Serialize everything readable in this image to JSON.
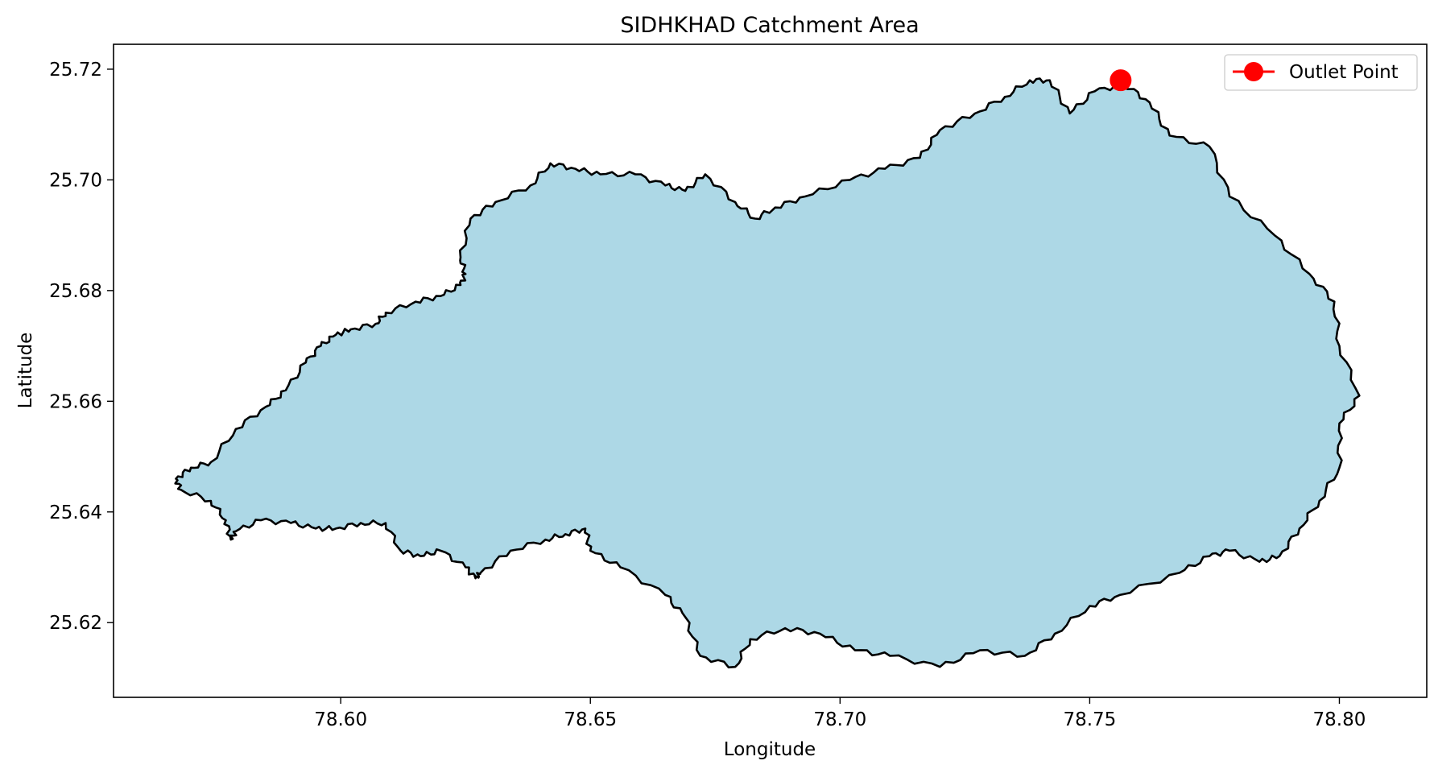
{
  "chart_data": {
    "type": "map",
    "title": "SIDHKHAD Catchment Area",
    "xlabel": "Longitude",
    "ylabel": "Latitude",
    "xlim": [
      78.5545,
      78.8175
    ],
    "ylim": [
      25.6065,
      25.7245
    ],
    "xticks": [
      78.6,
      78.65,
      78.7,
      78.75,
      78.8
    ],
    "xtick_labels": [
      "78.60",
      "78.65",
      "78.70",
      "78.75",
      "78.80"
    ],
    "yticks": [
      25.62,
      25.64,
      25.66,
      25.68,
      25.7,
      25.72
    ],
    "ytick_labels": [
      "25.62",
      "25.64",
      "25.66",
      "25.68",
      "25.70",
      "25.72"
    ],
    "grid": false,
    "legend_position": "upper right",
    "legend": [
      {
        "label": "Outlet Point",
        "color": "#ff0000",
        "marker": "circle"
      }
    ],
    "outlet_point": {
      "lon": 78.7562,
      "lat": 25.718
    },
    "catchment": {
      "fill_color": "#add8e6",
      "edge_color": "#000000",
      "boundary": [
        [
          78.757,
          25.7173
        ],
        [
          78.762,
          25.714
        ],
        [
          78.766,
          25.708
        ],
        [
          78.774,
          25.706
        ],
        [
          78.778,
          25.697
        ],
        [
          78.787,
          25.69
        ],
        [
          78.794,
          25.683
        ],
        [
          78.799,
          25.678
        ],
        [
          78.8,
          25.67
        ],
        [
          78.804,
          25.661
        ],
        [
          78.8,
          25.656
        ],
        [
          78.8,
          25.648
        ],
        [
          78.796,
          25.642
        ],
        [
          78.792,
          25.637
        ],
        [
          78.788,
          25.632
        ],
        [
          78.784,
          25.631
        ],
        [
          78.778,
          25.633
        ],
        [
          78.774,
          25.632
        ],
        [
          78.768,
          25.629
        ],
        [
          78.756,
          25.625
        ],
        [
          78.75,
          25.623
        ],
        [
          78.743,
          25.618
        ],
        [
          78.737,
          25.614
        ],
        [
          78.728,
          25.615
        ],
        [
          78.72,
          25.612
        ],
        [
          78.71,
          25.614
        ],
        [
          78.703,
          25.615
        ],
        [
          78.696,
          25.618
        ],
        [
          78.689,
          25.619
        ],
        [
          78.682,
          25.617
        ],
        [
          78.679,
          25.612
        ],
        [
          78.672,
          25.614
        ],
        [
          78.669,
          25.621
        ],
        [
          78.665,
          25.625
        ],
        [
          78.656,
          25.63
        ],
        [
          78.65,
          25.633
        ],
        [
          78.649,
          25.637
        ],
        [
          78.645,
          25.636
        ],
        [
          78.641,
          25.635
        ],
        [
          78.634,
          25.633
        ],
        [
          78.628,
          25.629
        ],
        [
          78.627,
          25.628
        ],
        [
          78.625,
          25.63
        ],
        [
          78.62,
          25.633
        ],
        [
          78.616,
          25.632
        ],
        [
          78.612,
          25.633
        ],
        [
          78.609,
          25.638
        ],
        [
          78.604,
          25.638
        ],
        [
          78.599,
          25.637
        ],
        [
          78.595,
          25.637
        ],
        [
          78.59,
          25.638
        ],
        [
          78.584,
          25.6385
        ],
        [
          78.579,
          25.6365
        ],
        [
          78.578,
          25.635
        ],
        [
          78.577,
          25.6385
        ],
        [
          78.574,
          25.642
        ],
        [
          78.568,
          25.644
        ],
        [
          78.567,
          25.646
        ],
        [
          78.57,
          25.648
        ],
        [
          78.574,
          25.649
        ],
        [
          78.579,
          25.655
        ],
        [
          78.585,
          25.659
        ],
        [
          78.589,
          25.662
        ],
        [
          78.593,
          25.667
        ],
        [
          78.596,
          25.67
        ],
        [
          78.599,
          25.672
        ],
        [
          78.602,
          25.673
        ],
        [
          78.607,
          25.674
        ],
        [
          78.609,
          25.676
        ],
        [
          78.615,
          25.678
        ],
        [
          78.62,
          25.679
        ],
        [
          78.624,
          25.681
        ],
        [
          78.625,
          25.683
        ],
        [
          78.624,
          25.686
        ],
        [
          78.626,
          25.693
        ],
        [
          78.631,
          25.696
        ],
        [
          78.638,
          25.699
        ],
        [
          78.642,
          25.703
        ],
        [
          78.647,
          25.702
        ],
        [
          78.652,
          25.701
        ],
        [
          78.659,
          25.701
        ],
        [
          78.665,
          25.699
        ],
        [
          78.669,
          25.698
        ],
        [
          78.673,
          25.701
        ],
        [
          78.679,
          25.696
        ],
        [
          78.683,
          25.693
        ],
        [
          78.687,
          25.695
        ],
        [
          78.693,
          25.697
        ],
        [
          78.702,
          25.7
        ],
        [
          78.709,
          25.702
        ],
        [
          78.716,
          25.704
        ],
        [
          78.72,
          25.709
        ],
        [
          78.727,
          25.712
        ],
        [
          78.733,
          25.715
        ],
        [
          78.738,
          25.718
        ],
        [
          78.742,
          25.718
        ],
        [
          78.746,
          25.712
        ],
        [
          78.751,
          25.716
        ]
      ]
    }
  }
}
